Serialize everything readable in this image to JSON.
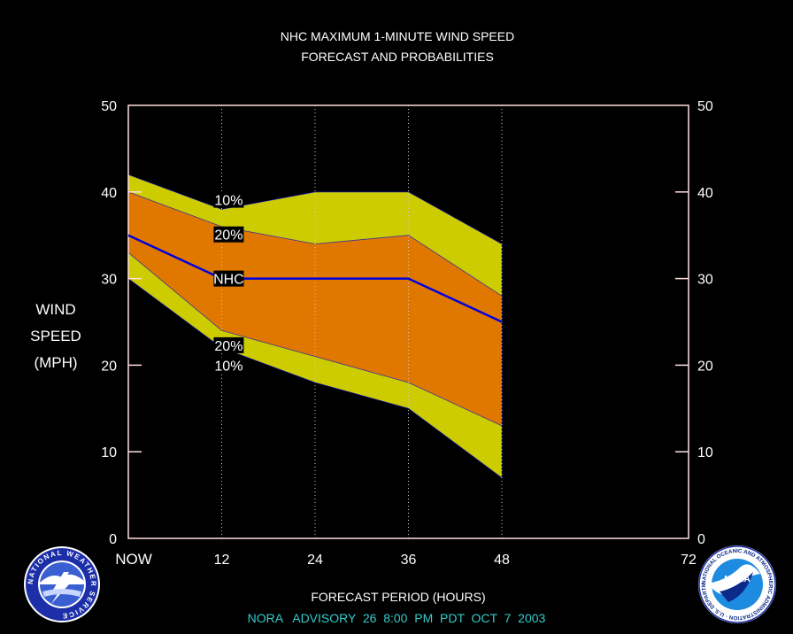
{
  "chart_data": {
    "type": "area",
    "title": "NHC MAXIMUM 1-MINUTE WIND SPEED",
    "subtitle": "FORECAST AND PROBABILITIES",
    "xlabel": "FORECAST PERIOD (HOURS)",
    "ylabel": [
      "WIND",
      "SPEED",
      "(MPH)"
    ],
    "xlim": [
      0,
      72
    ],
    "ylim": [
      0,
      50
    ],
    "x_ticks": [
      0,
      12,
      24,
      36,
      48,
      72
    ],
    "x_tick_labels": [
      "NOW",
      "12",
      "24",
      "36",
      "48",
      "72"
    ],
    "y_ticks": [
      0,
      10,
      20,
      30,
      40,
      50
    ],
    "y_tick_labels": [
      "0",
      "10",
      "20",
      "30",
      "40",
      "50"
    ],
    "grid_x": [
      12,
      24,
      36,
      48
    ],
    "x": [
      0,
      12,
      24,
      36,
      48
    ],
    "bands": [
      {
        "label": "10%",
        "upper": [
          42,
          38,
          40,
          40,
          34
        ],
        "lower": [
          30,
          22,
          18,
          15,
          7
        ],
        "color": "#cccc00"
      },
      {
        "label": "20%",
        "upper": [
          40,
          36,
          34,
          35,
          28
        ],
        "lower": [
          33,
          24,
          21,
          18,
          13
        ],
        "color": "#e07800"
      }
    ],
    "series": [
      {
        "name": "NHC",
        "values": [
          35,
          30,
          30,
          30,
          25
        ],
        "color": "#0000dd"
      }
    ],
    "inline_labels": [
      {
        "text": "10%",
        "x": 12.9,
        "y": 39.1
      },
      {
        "text": "20%",
        "x": 12.9,
        "y": 35.1
      },
      {
        "text": "NHC",
        "x": 12.9,
        "y": 30.0
      },
      {
        "text": "20%",
        "x": 12.9,
        "y": 22.3
      },
      {
        "text": "10%",
        "x": 12.9,
        "y": 20.0
      }
    ]
  },
  "footer": {
    "advisory": "NORA   ADVISORY  26  8:00  PM  PDT  OCT  7  2003"
  },
  "logos": {
    "left": {
      "icon": "nws-logo-icon",
      "text": "NATIONAL WEATHER SERVICE"
    },
    "right": {
      "icon": "noaa-logo-icon",
      "center_text": "NOAA",
      "ring_text": "NATIONAL OCEANIC AND ATMOSPHERIC ADMINISTRATION · U.S. DEPARTMENT OF COMMERCE"
    }
  },
  "colors": {
    "background": "#000000",
    "axis": "#ffe0e0",
    "grid": "#cccccc",
    "band_10": "#cccc00",
    "band_20": "#e07800",
    "nhc_line": "#0000dd",
    "footer_text": "#33cccc"
  }
}
